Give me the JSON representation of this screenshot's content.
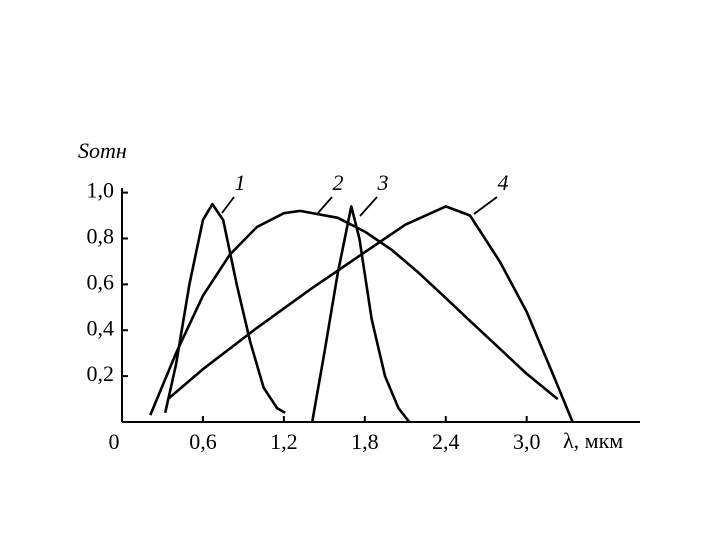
{
  "chart_data": {
    "type": "line",
    "y_label": "Sотн",
    "x_label": "λ, мкм",
    "xlim": [
      0,
      3.84
    ],
    "ylim": [
      0,
      1.02
    ],
    "xticks": [
      0,
      {
        "value": 0.6,
        "label": "0,6"
      },
      {
        "value": 1.2,
        "label": "1,2"
      },
      {
        "value": 1.8,
        "label": "1,8"
      },
      {
        "value": 2.4,
        "label": "2,4"
      },
      {
        "value": 3.0,
        "label": "3,0"
      }
    ],
    "yticks": [
      {
        "value": 0.2,
        "label": "0,2"
      },
      {
        "value": 0.4,
        "label": "0,4"
      },
      {
        "value": 0.6,
        "label": "0,6"
      },
      {
        "value": 0.8,
        "label": "0,8"
      },
      {
        "value": 1.0,
        "label": "1,0"
      }
    ],
    "series": [
      {
        "name": "1",
        "color": "#000000",
        "x": [
          0.32,
          0.4,
          0.5,
          0.6,
          0.67,
          0.75,
          0.85,
          0.95,
          1.05,
          1.15,
          1.21
        ],
        "values": [
          0.04,
          0.25,
          0.6,
          0.88,
          0.95,
          0.88,
          0.6,
          0.35,
          0.15,
          0.06,
          0.04
        ]
      },
      {
        "name": "2",
        "color": "#000000",
        "x": [
          0.21,
          0.4,
          0.6,
          0.8,
          1.0,
          1.2,
          1.32,
          1.6,
          1.8,
          2.0,
          2.2,
          2.4,
          2.6,
          2.8,
          3.0,
          3.23
        ],
        "values": [
          0.03,
          0.3,
          0.55,
          0.73,
          0.85,
          0.91,
          0.92,
          0.89,
          0.83,
          0.75,
          0.65,
          0.54,
          0.43,
          0.32,
          0.21,
          0.1
        ]
      },
      {
        "name": "3",
        "color": "#000000",
        "x": [
          1.41,
          1.5,
          1.6,
          1.7,
          1.76,
          1.85,
          1.95,
          2.05,
          2.13
        ],
        "values": [
          0,
          0.3,
          0.65,
          0.94,
          0.8,
          0.45,
          0.2,
          0.06,
          0
        ]
      },
      {
        "name": "4",
        "color": "#000000",
        "x": [
          0.34,
          0.6,
          1.0,
          1.4,
          1.8,
          2.1,
          2.4,
          2.58,
          2.8,
          3.0,
          3.2,
          3.34
        ],
        "values": [
          0.1,
          0.23,
          0.41,
          0.58,
          0.74,
          0.86,
          0.94,
          0.9,
          0.7,
          0.48,
          0.2,
          0
        ]
      }
    ]
  }
}
